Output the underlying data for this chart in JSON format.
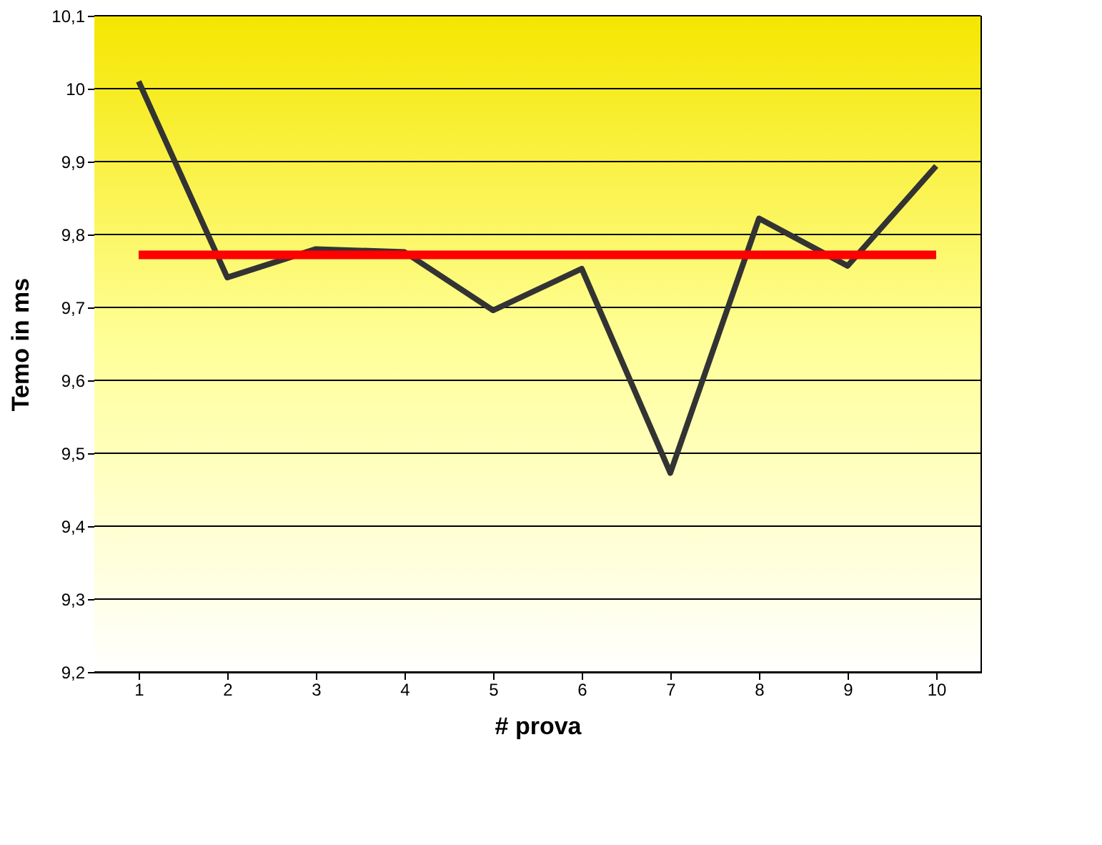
{
  "chart_data": {
    "type": "line",
    "xlabel": "# prova",
    "ylabel": "Temo in ms",
    "categories": [
      "1",
      "2",
      "3",
      "4",
      "5",
      "6",
      "7",
      "8",
      "9",
      "10"
    ],
    "series": [
      {
        "color": "#333333",
        "values": [
          10.01,
          9.741,
          9.78,
          9.776,
          9.696,
          9.753,
          9.473,
          9.822,
          9.757,
          9.894
        ]
      }
    ],
    "ref_lines": [
      {
        "axis": "y",
        "value": 9.772,
        "color": "#ff0000"
      }
    ],
    "ylim": [
      9.2,
      10.1
    ],
    "yticks": [
      {
        "value": 9.2,
        "label": "9,2"
      },
      {
        "value": 9.3,
        "label": "9,3"
      },
      {
        "value": 9.4,
        "label": "9,4"
      },
      {
        "value": 9.5,
        "label": "9,5"
      },
      {
        "value": 9.6,
        "label": "9,6"
      },
      {
        "value": 9.7,
        "label": "9,7"
      },
      {
        "value": 9.8,
        "label": "9,8"
      },
      {
        "value": 9.9,
        "label": "9,9"
      },
      {
        "value": 10,
        "label": "10"
      },
      {
        "value": 10.1,
        "label": "10,1"
      }
    ],
    "grid": "y",
    "marker": "none",
    "line_style": "solid"
  }
}
